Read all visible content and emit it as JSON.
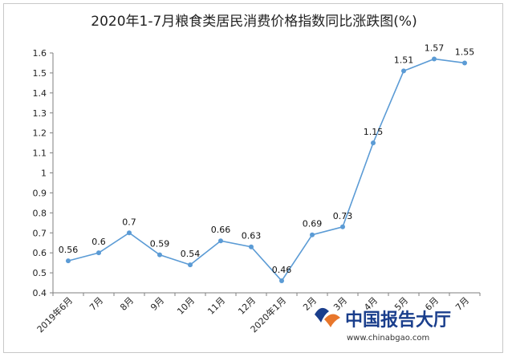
{
  "chart_data": {
    "type": "line",
    "title": "2020年1-7月粮食类居民消费价格指数同比涨跌图(%)",
    "categories": [
      "2019年6月",
      "7月",
      "8月",
      "9月",
      "10月",
      "11月",
      "12月",
      "2020年1月",
      "2月",
      "3月",
      "4月",
      "5月",
      "6月",
      "7月"
    ],
    "values": [
      0.56,
      0.6,
      0.7,
      0.59,
      0.54,
      0.66,
      0.63,
      0.46,
      0.69,
      0.73,
      1.15,
      1.51,
      1.57,
      1.55
    ],
    "value_labels": [
      "0.56",
      "0.6",
      "0.7",
      "0.59",
      "0.54",
      "0.66",
      "0.63",
      "0.46",
      "0.69",
      "0.73",
      "1.15",
      "1.51",
      "1.57",
      "1.55"
    ],
    "ylim": [
      0.4,
      1.6
    ],
    "yticks": [
      "0.4",
      "0.5",
      "0.6",
      "0.7",
      "0.8",
      "0.9",
      "1",
      "1.1",
      "1.2",
      "1.3",
      "1.4",
      "1.5",
      "1.6"
    ],
    "xlabel": "",
    "ylabel": "",
    "grid": false,
    "line_color": "#5b9bd5"
  },
  "watermark": {
    "text": "中国报告大厅",
    "url": "www.chinabgao.com",
    "logo_color": "#1a3e8c",
    "accent_color": "#e8762b"
  }
}
